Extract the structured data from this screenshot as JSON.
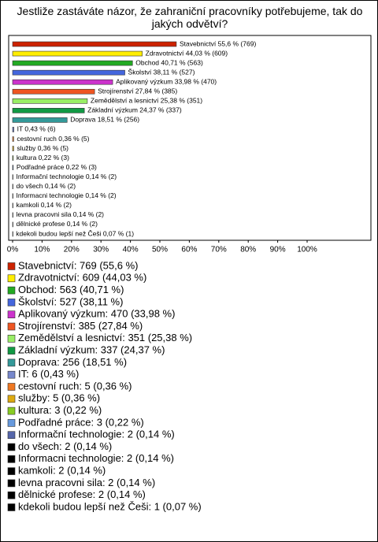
{
  "chart_data": {
    "type": "bar",
    "orientation": "horizontal",
    "title": "Jestliže zastáváte názor, že zahraniční pracovníky potřebujeme, tak do jakých odvětví?",
    "values": [
      55.6,
      44.03,
      40.71,
      38.11,
      33.98,
      27.84,
      25.38,
      24.37,
      18.51,
      0.43,
      0.36,
      0.36,
      0.22,
      0.22,
      0.14,
      0.14,
      0.14,
      0.14,
      0.14,
      0.14,
      0.07
    ],
    "value_labels": [
      "Stavebnictví 55,6 % (769)",
      "Zdravotnictví 44,03 % (609)",
      "Obchod 40,71 % (563)",
      "Školství 38,11 % (527)",
      "Aplikovaný výzkum 33,98 % (470)",
      "Strojírenství 27,84 % (385)",
      "Zemědělství a lesnictví 25,38 % (351)",
      "Základní výzkum 24,37 % (337)",
      "Doprava 18,51 % (256)",
      "IT 0,43 % (6)",
      "cestovní ruch 0,36 % (5)",
      "služby 0,36 % (5)",
      "kultura 0,22 % (3)",
      "Podřadné práce 0,22 % (3)",
      "Informační technologie 0,14 % (2)",
      "do všech 0,14 % (2)",
      "Informacni technologie 0,14 % (2)",
      "kamkoli 0,14 % (2)",
      "levna pracovni sila 0,14 % (2)",
      "dělnické profese 0,14 % (2)",
      "kdekoli budou lepší než Češi 0,07 % (1)"
    ],
    "legend_labels": [
      "Stavebnictví: 769 (55,6 %)",
      "Zdravotnictví: 609 (44,03 %)",
      "Obchod: 563 (40,71 %)",
      "Školství: 527 (38,11 %)",
      "Aplikovaný výzkum: 470 (33,98 %)",
      "Strojírenství: 385 (27,84 %)",
      "Zemědělství a lesnictví: 351 (25,38 %)",
      "Základní výzkum: 337 (24,37 %)",
      "Doprava: 256 (18,51 %)",
      "IT: 6 (0,43 %)",
      "cestovní ruch: 5 (0,36 %)",
      "služby: 5 (0,36 %)",
      "kultura: 3 (0,22 %)",
      "Podřadné práce: 3 (0,22 %)",
      "Informační technologie: 2 (0,14 %)",
      "do všech: 2 (0,14 %)",
      "Informacni technologie: 2 (0,14 %)",
      "kamkoli: 2 (0,14 %)",
      "levna pracovni sila: 2 (0,14 %)",
      "dělnické profese: 2 (0,14 %)",
      "kdekoli budou lepší než Češi: 1 (0,07 %)"
    ],
    "colors": [
      "#cc2200",
      "#ffee00",
      "#22aa22",
      "#4466dd",
      "#cc33cc",
      "#ee5522",
      "#99ee66",
      "#119944",
      "#339999",
      "#7788cc",
      "#ee7722",
      "#ddaa11",
      "#88cc22",
      "#6699dd",
      "#5566aa",
      "#000000",
      "#000000",
      "#000000",
      "#000000",
      "#000000",
      "#000000"
    ],
    "xlim": [
      0,
      100
    ],
    "xticks": [
      {
        "value": 0,
        "label": "0%"
      },
      {
        "value": 10,
        "label": "10%"
      },
      {
        "value": 20,
        "label": "20%"
      },
      {
        "value": 30,
        "label": "30%"
      },
      {
        "value": 40,
        "label": "40%"
      },
      {
        "value": 50,
        "label": "50%"
      },
      {
        "value": 60,
        "label": "60%"
      },
      {
        "value": 70,
        "label": "70%"
      },
      {
        "value": 80,
        "label": "80%"
      },
      {
        "value": 90,
        "label": "90%"
      },
      {
        "value": 100,
        "label": "100%"
      }
    ]
  }
}
